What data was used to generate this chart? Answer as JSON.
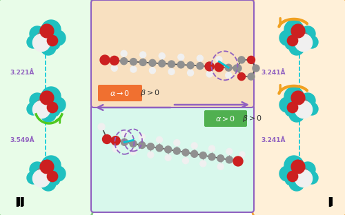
{
  "fig_width": 5.0,
  "fig_height": 3.12,
  "dpi": 100,
  "bg_color": "#ffffff",
  "left_box_facecolor": "#e8fce8",
  "left_box_edgecolor": "#80c880",
  "right_box_facecolor": "#fff0d8",
  "right_box_edgecolor": "#f0a030",
  "top_center_bg": "#d8f8ec",
  "top_center_edge": "#9060c0",
  "bottom_center_bg": "#f8e0c0",
  "bottom_center_edge": "#9060c0",
  "label_II": "II",
  "label_I": "I",
  "dist1_left": "3.221Å",
  "dist2_left": "3.549Å",
  "dist1_right": "3.241Å",
  "dist2_right": "3.241Å",
  "dist_color": "#9060c0",
  "arrow_purple": "#9060c0",
  "green_badge_bg": "#50b050",
  "orange_badge_bg": "#f07030",
  "teal_color": "#20c0c0",
  "red_color": "#cc2020",
  "white_color": "#f0f0f0",
  "grey_color": "#808080",
  "dark_grey": "#505050",
  "green_arrow": "#50c820",
  "orange_arrow": "#f0a020",
  "cyan_line": "#00c8d8",
  "purple_ellipse": "#9060c0",
  "label_fontsize": 8,
  "dist_fontsize": 6.5,
  "roman_fontsize": 11
}
